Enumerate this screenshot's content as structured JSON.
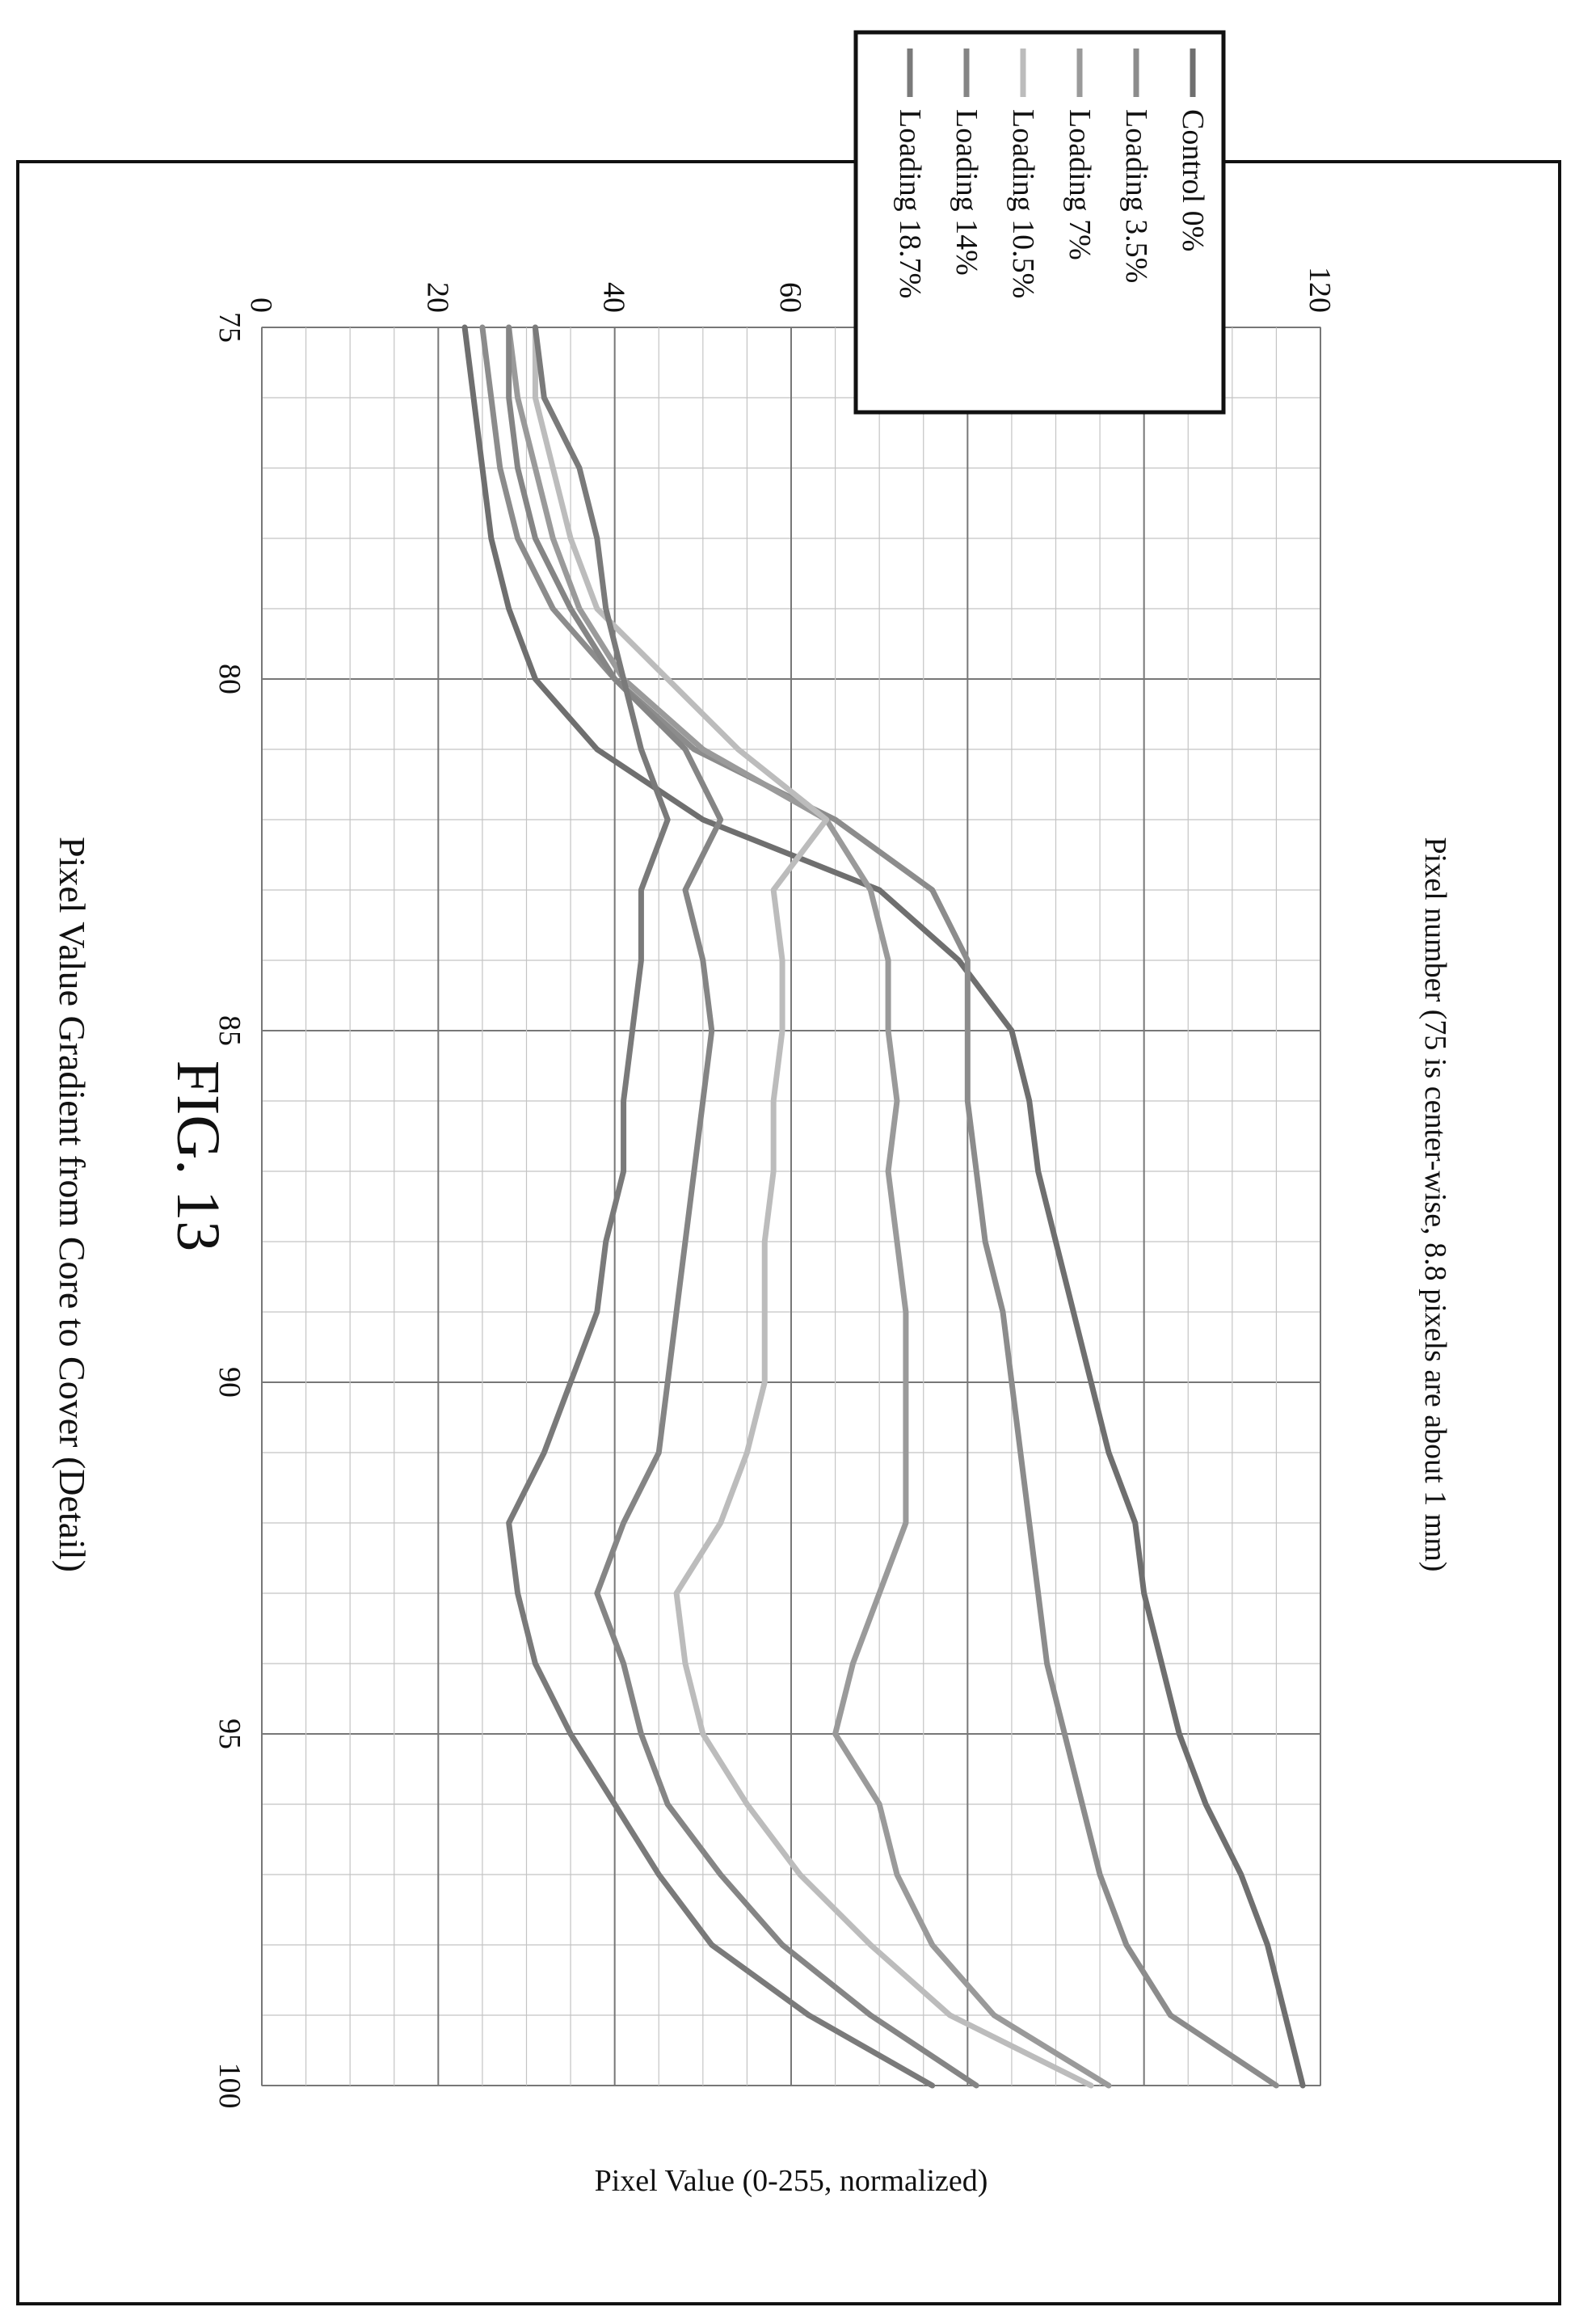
{
  "figure_label": "FIG. 13",
  "chart_data": {
    "type": "line",
    "title": "Pixel Value Gradient from Core to Cover (Detail)",
    "xlabel": "Pixel number (75 is center-wise, 8.8 pixels are about 1 mm)",
    "ylabel": "Pixel Value (0-255, normalized)",
    "xlim": [
      75,
      100
    ],
    "ylim": [
      0,
      120
    ],
    "x_ticks": [
      "75",
      "80",
      "85",
      "90",
      "95",
      "100"
    ],
    "y_ticks": [
      "0",
      "20",
      "40",
      "60",
      "80",
      "100",
      "120"
    ],
    "grid": true,
    "orientation": "rotated-90-clockwise",
    "legend_position": "top-right",
    "x": [
      75,
      76,
      77,
      78,
      79,
      80,
      81,
      82,
      83,
      84,
      85,
      86,
      87,
      88,
      89,
      90,
      91,
      92,
      93,
      94,
      95,
      96,
      97,
      98,
      99,
      100
    ],
    "series": [
      {
        "name": "Control 0%",
        "color": "#6f6f6f",
        "values": [
          23,
          24,
          25,
          26,
          28,
          31,
          38,
          50,
          70,
          79,
          85,
          87,
          88,
          90,
          92,
          94,
          96,
          99,
          100,
          102,
          104,
          107,
          111,
          114,
          116,
          118
        ]
      },
      {
        "name": "Loading 3.5%",
        "color": "#8c8c8c",
        "values": [
          25,
          26,
          27,
          29,
          33,
          40,
          49,
          65,
          76,
          80,
          80,
          80,
          81,
          82,
          84,
          85,
          86,
          87,
          88,
          89,
          91,
          93,
          95,
          98,
          103,
          115
        ]
      },
      {
        "name": "Loading 7%",
        "color": "#9a9a9a",
        "values": [
          28,
          29,
          31,
          33,
          36,
          41,
          50,
          64,
          69,
          71,
          71,
          72,
          71,
          72,
          73,
          73,
          73,
          73,
          70,
          67,
          65,
          70,
          72,
          76,
          83,
          96
        ]
      },
      {
        "name": "Loading 10.5%",
        "color": "#bcbcbc",
        "values": [
          31,
          31,
          33,
          35,
          38,
          46,
          54,
          64,
          58,
          59,
          59,
          58,
          58,
          57,
          57,
          57,
          55,
          52,
          47,
          48,
          50,
          55,
          61,
          69,
          78,
          94
        ]
      },
      {
        "name": "Loading 14%",
        "color": "#858585",
        "values": [
          28,
          28,
          29,
          31,
          35,
          40,
          48,
          52,
          48,
          50,
          51,
          50,
          49,
          48,
          47,
          46,
          45,
          41,
          38,
          41,
          43,
          46,
          52,
          59,
          69,
          81
        ]
      },
      {
        "name": "Loading 18.7%",
        "color": "#7a7a7a",
        "values": [
          31,
          32,
          36,
          38,
          39,
          41,
          43,
          46,
          43,
          43,
          42,
          41,
          41,
          39,
          38,
          35,
          32,
          28,
          29,
          31,
          35,
          40,
          45,
          51,
          62,
          76
        ]
      }
    ]
  }
}
